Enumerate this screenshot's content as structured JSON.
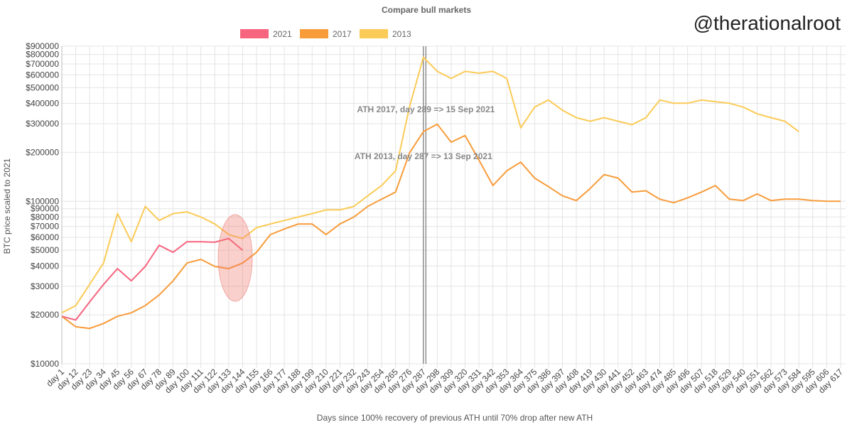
{
  "chart_data": {
    "type": "line",
    "title": "Compare bull markets",
    "watermark": "@therationalroot",
    "x_label": "Days since 100% recovery of previous ATH until 70% drop after new ATH",
    "y_label": "BTC price scaled to 2021",
    "log_scale": true,
    "grid": true,
    "legend": "top",
    "x": [
      1,
      12,
      23,
      34,
      45,
      56,
      67,
      78,
      89,
      100,
      111,
      122,
      133,
      144,
      155,
      166,
      177,
      188,
      199,
      210,
      221,
      232,
      243,
      254,
      265,
      276,
      287,
      298,
      309,
      320,
      331,
      342,
      353,
      364,
      375,
      386,
      397,
      408,
      419,
      430,
      441,
      452,
      463,
      474,
      485,
      496,
      507,
      518,
      529,
      540,
      551,
      562,
      573,
      584,
      595,
      606,
      617
    ],
    "xlim": [
      1,
      621
    ],
    "xticks": [
      {
        "value": 1,
        "label": "day 1"
      },
      {
        "value": 12,
        "label": "day 12"
      },
      {
        "value": 23,
        "label": "day 23"
      },
      {
        "value": 34,
        "label": "day 34"
      },
      {
        "value": 45,
        "label": "day 45"
      },
      {
        "value": 56,
        "label": "day 56"
      },
      {
        "value": 67,
        "label": "day 67"
      },
      {
        "value": 78,
        "label": "day 78"
      },
      {
        "value": 89,
        "label": "day 89"
      },
      {
        "value": 100,
        "label": "day 100"
      },
      {
        "value": 111,
        "label": "day 111"
      },
      {
        "value": 122,
        "label": "day 122"
      },
      {
        "value": 133,
        "label": "day 133"
      },
      {
        "value": 144,
        "label": "day 144"
      },
      {
        "value": 155,
        "label": "day 155"
      },
      {
        "value": 166,
        "label": "day 166"
      },
      {
        "value": 177,
        "label": "day 177"
      },
      {
        "value": 188,
        "label": "day 188"
      },
      {
        "value": 199,
        "label": "day 199"
      },
      {
        "value": 210,
        "label": "day 210"
      },
      {
        "value": 221,
        "label": "day 221"
      },
      {
        "value": 232,
        "label": "day 232"
      },
      {
        "value": 243,
        "label": "day 243"
      },
      {
        "value": 254,
        "label": "day 254"
      },
      {
        "value": 265,
        "label": "day 265"
      },
      {
        "value": 276,
        "label": "day 276"
      },
      {
        "value": 287,
        "label": "day 287"
      },
      {
        "value": 298,
        "label": "day 298"
      },
      {
        "value": 309,
        "label": "day 309"
      },
      {
        "value": 320,
        "label": "day 320"
      },
      {
        "value": 331,
        "label": "day 331"
      },
      {
        "value": 342,
        "label": "day 342"
      },
      {
        "value": 353,
        "label": "day 353"
      },
      {
        "value": 364,
        "label": "day 364"
      },
      {
        "value": 375,
        "label": "day 375"
      },
      {
        "value": 386,
        "label": "day 386"
      },
      {
        "value": 397,
        "label": "day 397"
      },
      {
        "value": 408,
        "label": "day 408"
      },
      {
        "value": 419,
        "label": "day 419"
      },
      {
        "value": 430,
        "label": "day 430"
      },
      {
        "value": 441,
        "label": "day 441"
      },
      {
        "value": 452,
        "label": "day 452"
      },
      {
        "value": 463,
        "label": "day 463"
      },
      {
        "value": 474,
        "label": "day 474"
      },
      {
        "value": 485,
        "label": "day 485"
      },
      {
        "value": 496,
        "label": "day 496"
      },
      {
        "value": 507,
        "label": "day 507"
      },
      {
        "value": 518,
        "label": "day 518"
      },
      {
        "value": 529,
        "label": "day 529"
      },
      {
        "value": 540,
        "label": "day 540"
      },
      {
        "value": 551,
        "label": "day 551"
      },
      {
        "value": 562,
        "label": "day 562"
      },
      {
        "value": 573,
        "label": "day 573"
      },
      {
        "value": 584,
        "label": "day 584"
      },
      {
        "value": 595,
        "label": "day 595"
      },
      {
        "value": 606,
        "label": "day 606"
      },
      {
        "value": 617,
        "label": "day 617"
      }
    ],
    "ylim": [
      10000,
      900000
    ],
    "yticks": [
      {
        "value": 10000,
        "label": "$10000"
      },
      {
        "value": 20000,
        "label": "$20000"
      },
      {
        "value": 30000,
        "label": "$30000"
      },
      {
        "value": 40000,
        "label": "$40000"
      },
      {
        "value": 50000,
        "label": "$50000"
      },
      {
        "value": 60000,
        "label": "$60000"
      },
      {
        "value": 70000,
        "label": "$70000"
      },
      {
        "value": 80000,
        "label": "$80000"
      },
      {
        "value": 90000,
        "label": "$90000"
      },
      {
        "value": 100000,
        "label": "$100000"
      },
      {
        "value": 200000,
        "label": "$200000"
      },
      {
        "value": 300000,
        "label": "$300000"
      },
      {
        "value": 400000,
        "label": "$400000"
      },
      {
        "value": 500000,
        "label": "$500000"
      },
      {
        "value": 600000,
        "label": "$600000"
      },
      {
        "value": 700000,
        "label": "$700000"
      },
      {
        "value": 800000,
        "label": "$800000"
      },
      {
        "value": 900000,
        "label": "$900000"
      }
    ],
    "series": [
      {
        "name": "2021",
        "color": "#f7647e",
        "values": [
          19600,
          18600,
          24000,
          30800,
          38500,
          32400,
          39700,
          53600,
          48500,
          56400,
          56400,
          56000,
          59000,
          50000,
          null,
          null,
          null,
          null,
          null,
          null,
          null,
          null,
          null,
          null,
          null,
          null,
          null,
          null,
          null,
          null,
          null,
          null,
          null,
          null,
          null,
          null,
          null,
          null,
          null,
          null,
          null,
          null,
          null,
          null,
          null,
          null,
          null,
          null,
          null,
          null,
          null,
          null,
          null,
          null,
          null,
          null,
          null
        ]
      },
      {
        "name": "2017",
        "color": "#f89c3a",
        "values": [
          19600,
          16900,
          16500,
          17700,
          19600,
          20600,
          22800,
          26500,
          32400,
          41700,
          43900,
          39700,
          38500,
          41700,
          48500,
          62400,
          67500,
          72500,
          72500,
          62400,
          72500,
          80000,
          93000,
          103000,
          114000,
          198000,
          268000,
          298000,
          231000,
          254000,
          179000,
          125000,
          154000,
          174000,
          139000,
          123000,
          108000,
          101000,
          120000,
          146000,
          139000,
          114000,
          116000,
          103000,
          98000,
          105000,
          114000,
          125000,
          103000,
          101000,
          111000,
          101000,
          103000,
          103000,
          101000,
          100000,
          100000
        ]
      },
      {
        "name": "2013",
        "color": "#fbcb57",
        "values": [
          20600,
          22800,
          30800,
          41700,
          84000,
          56400,
          93000,
          76200,
          84000,
          86000,
          80000,
          72500,
          62400,
          59000,
          68800,
          72500,
          76200,
          80000,
          84000,
          88500,
          88500,
          93000,
          108000,
          125000,
          154000,
          380000,
          770000,
          630000,
          570000,
          630000,
          614000,
          630000,
          570000,
          283000,
          380000,
          420000,
          363000,
          327000,
          311000,
          327000,
          311000,
          296000,
          327000,
          420000,
          401000,
          401000,
          420000,
          410000,
          401000,
          380000,
          345000,
          327000,
          311000,
          268000,
          null,
          null,
          null
        ]
      }
    ],
    "annotations": [
      {
        "text": "ATH 2017, day 289 => 15 Sep 2021",
        "x": 289
      },
      {
        "text": "ATH 2013, day 287 => 13 Sep 2021",
        "x": 287
      }
    ]
  }
}
